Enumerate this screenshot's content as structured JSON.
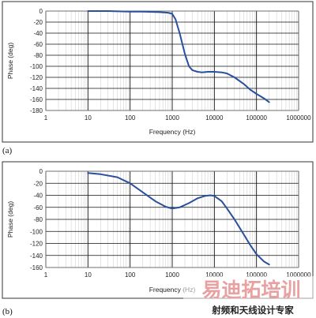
{
  "chart_data": [
    {
      "type": "line",
      "panel_label": "(a)",
      "xlabel": "Frequency (Hz)",
      "ylabel": "Phase (deg)",
      "xscale": "log",
      "xlim": [
        1,
        1000000
      ],
      "ylim": [
        -180,
        0
      ],
      "x_ticks": [
        "1",
        "10",
        "100",
        "1000",
        "10000",
        "100000",
        "1000000"
      ],
      "y_ticks": [
        "0",
        "-20",
        "-40",
        "-60",
        "-80",
        "-100",
        "-120",
        "-140",
        "-160",
        "-180"
      ],
      "y_tick_values": [
        0,
        -20,
        -40,
        -60,
        -80,
        -100,
        -120,
        -140,
        -160,
        -180
      ],
      "grid": true,
      "line_color": "#2a4f9c",
      "x": [
        10,
        30,
        100,
        200,
        500,
        800,
        1000,
        1200,
        1500,
        2000,
        2500,
        3000,
        4000,
        5000,
        7000,
        10000,
        15000,
        20000,
        30000,
        50000,
        70000,
        100000,
        150000,
        200000
      ],
      "y": [
        0,
        0,
        -1,
        -1,
        -2,
        -3,
        -5,
        -15,
        -40,
        -78,
        -100,
        -107,
        -110,
        -111,
        -110,
        -110,
        -111,
        -113,
        -120,
        -132,
        -142,
        -150,
        -158,
        -165
      ]
    },
    {
      "type": "line",
      "panel_label": "(b)",
      "xlabel": "Frequency (Hz)",
      "ylabel": "Phase (deg)",
      "xscale": "log",
      "xlim": [
        1,
        1000000
      ],
      "ylim": [
        -160,
        0
      ],
      "x_ticks": [
        "1",
        "10",
        "100",
        "1000",
        "10000",
        "100000",
        "1000000"
      ],
      "y_ticks": [
        "0",
        "-20",
        "-40",
        "-60",
        "-80",
        "-100",
        "-120",
        "-140",
        "-160"
      ],
      "y_tick_values": [
        0,
        -20,
        -40,
        -60,
        -80,
        -100,
        -120,
        -140,
        -160
      ],
      "grid": true,
      "line_color": "#2a4f9c",
      "x": [
        10,
        20,
        50,
        100,
        200,
        400,
        700,
        1000,
        1500,
        2500,
        4000,
        6000,
        8000,
        10000,
        15000,
        20000,
        30000,
        50000,
        70000,
        100000,
        150000,
        200000
      ],
      "y": [
        -3,
        -5,
        -10,
        -20,
        -35,
        -50,
        -59,
        -62,
        -60,
        -53,
        -45,
        -41,
        -40,
        -41,
        -50,
        -62,
        -80,
        -105,
        -122,
        -138,
        -150,
        -155
      ]
    }
  ],
  "watermark": {
    "main": "易迪拓培训",
    "sub": "射频和天线设计专家",
    "color_main": "#e8a0a0",
    "color_sub": "#222222"
  }
}
